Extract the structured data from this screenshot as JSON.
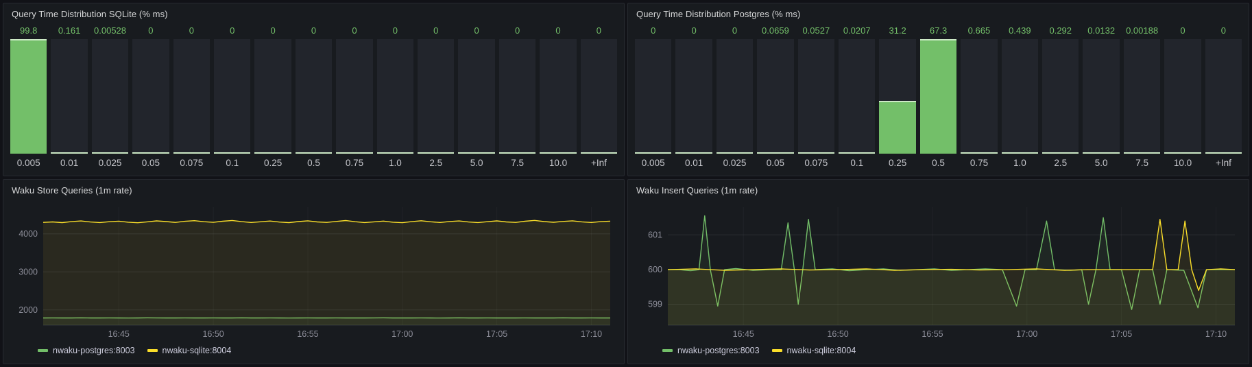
{
  "theme": {
    "bg": "#111217",
    "panel_bg": "#181b1f",
    "green": "#73bf69",
    "yellow": "#fade2a",
    "title_color": "#d8d9da",
    "axis_text": "rgba(204,204,220,0.65)",
    "bar_track": "#22252c"
  },
  "chart_data": [
    {
      "type": "bar",
      "panel": "top-left",
      "title": "Query Time Distribution SQLite (% ms)",
      "categories": [
        "0.005",
        "0.01",
        "0.025",
        "0.05",
        "0.075",
        "0.1",
        "0.25",
        "0.5",
        "0.75",
        "1.0",
        "2.5",
        "5.0",
        "7.5",
        "10.0",
        "+Inf"
      ],
      "values": [
        99.8,
        0.161,
        0.00528,
        0,
        0,
        0,
        0,
        0,
        0,
        0,
        0,
        0,
        0,
        0,
        0
      ],
      "value_labels": [
        "99.8",
        "0.161",
        "0.00528",
        "0",
        "0",
        "0",
        "0",
        "0",
        "0",
        "0",
        "0",
        "0",
        "0",
        "0",
        "0"
      ],
      "bar_color": "#73bf69",
      "scale": "relative-to-max"
    },
    {
      "type": "bar",
      "panel": "top-right",
      "title": "Query Time Distribution Postgres (% ms)",
      "categories": [
        "0.005",
        "0.01",
        "0.025",
        "0.05",
        "0.075",
        "0.1",
        "0.25",
        "0.5",
        "0.75",
        "1.0",
        "2.5",
        "5.0",
        "7.5",
        "10.0",
        "+Inf"
      ],
      "values": [
        0,
        0,
        0,
        0.0659,
        0.0527,
        0.0207,
        31.2,
        67.3,
        0.665,
        0.439,
        0.292,
        0.0132,
        0.00188,
        0,
        0
      ],
      "value_labels": [
        "0",
        "0",
        "0",
        "0.0659",
        "0.0527",
        "0.0207",
        "31.2",
        "67.3",
        "0.665",
        "0.439",
        "0.292",
        "0.0132",
        "0.00188",
        "0",
        "0"
      ],
      "bar_color": "#73bf69",
      "scale": "relative-to-max"
    },
    {
      "type": "line",
      "panel": "bottom-left",
      "title": "Waku Store Queries (1m rate)",
      "x_ticks": [
        "16:45",
        "16:50",
        "16:55",
        "17:00",
        "17:05",
        "17:10"
      ],
      "x_tick_pos": [
        0.1333,
        0.3,
        0.4667,
        0.6333,
        0.8,
        0.9667
      ],
      "y_ticks": [
        2000,
        3000,
        4000
      ],
      "ylim": [
        1600,
        4700
      ],
      "grid": true,
      "legend_position": "bottom",
      "series": [
        {
          "name": "nwaku-postgres:8003",
          "color": "#73bf69",
          "values": [
            1790,
            1791,
            1789,
            1790,
            1792,
            1790,
            1789,
            1791,
            1790,
            1788,
            1790,
            1792,
            1791,
            1789,
            1790,
            1791,
            1790,
            1789,
            1791,
            1790,
            1790,
            1792,
            1789,
            1790,
            1791,
            1790,
            1788,
            1790,
            1791,
            1790,
            1789,
            1791,
            1790,
            1790,
            1789,
            1791,
            1792,
            1790,
            1789,
            1790,
            1791,
            1790,
            1788,
            1790,
            1792,
            1790,
            1789,
            1791,
            1790,
            1789,
            1790,
            1791,
            1790,
            1789,
            1790,
            1792,
            1790,
            1789,
            1791,
            1790,
            1790
          ]
        },
        {
          "name": "nwaku-sqlite:8004",
          "color": "#fade2a",
          "values": [
            4300,
            4312,
            4295,
            4320,
            4338,
            4310,
            4296,
            4318,
            4332,
            4305,
            4290,
            4315,
            4340,
            4322,
            4300,
            4328,
            4345,
            4318,
            4302,
            4330,
            4350,
            4320,
            4298,
            4316,
            4336,
            4308,
            4294,
            4322,
            4342,
            4312,
            4300,
            4326,
            4348,
            4318,
            4296,
            4314,
            4334,
            4306,
            4292,
            4320,
            4344,
            4316,
            4298,
            4324,
            4338,
            4310,
            4296,
            4318,
            4340,
            4312,
            4300,
            4330,
            4352,
            4322,
            4304,
            4326,
            4342,
            4314,
            4298,
            4320,
            4332
          ]
        }
      ]
    },
    {
      "type": "line",
      "panel": "bottom-right",
      "title": "Waku Insert Queries (1m rate)",
      "x_ticks": [
        "16:45",
        "16:50",
        "16:55",
        "17:00",
        "17:05",
        "17:10"
      ],
      "x_tick_pos": [
        0.1333,
        0.3,
        0.4667,
        0.6333,
        0.8,
        0.9667
      ],
      "y_ticks": [
        599,
        600,
        601
      ],
      "ylim": [
        598.4,
        601.8
      ],
      "grid": true,
      "legend_position": "bottom",
      "series": [
        {
          "name": "nwaku-postgres:8003",
          "color": "#73bf69",
          "points": [
            [
              0,
              600
            ],
            [
              0.02,
              600
            ],
            [
              0.04,
              599.97
            ],
            [
              0.055,
              600
            ],
            [
              0.065,
              601.55
            ],
            [
              0.075,
              600
            ],
            [
              0.088,
              598.95
            ],
            [
              0.1,
              600
            ],
            [
              0.12,
              600.03
            ],
            [
              0.15,
              599.98
            ],
            [
              0.18,
              600
            ],
            [
              0.2,
              600
            ],
            [
              0.212,
              601.35
            ],
            [
              0.224,
              599.9
            ],
            [
              0.23,
              599.0
            ],
            [
              0.238,
              600
            ],
            [
              0.248,
              601.45
            ],
            [
              0.26,
              600
            ],
            [
              0.29,
              600.02
            ],
            [
              0.32,
              599.97
            ],
            [
              0.35,
              600
            ],
            [
              0.38,
              600.02
            ],
            [
              0.41,
              599.98
            ],
            [
              0.44,
              600
            ],
            [
              0.47,
              600.02
            ],
            [
              0.5,
              599.98
            ],
            [
              0.53,
              600
            ],
            [
              0.56,
              600.02
            ],
            [
              0.59,
              600
            ],
            [
              0.615,
              598.95
            ],
            [
              0.63,
              600
            ],
            [
              0.65,
              600
            ],
            [
              0.668,
              601.4
            ],
            [
              0.682,
              600
            ],
            [
              0.71,
              599.98
            ],
            [
              0.73,
              600
            ],
            [
              0.742,
              599.0
            ],
            [
              0.755,
              600
            ],
            [
              0.768,
              601.5
            ],
            [
              0.78,
              600
            ],
            [
              0.8,
              600
            ],
            [
              0.818,
              598.85
            ],
            [
              0.832,
              600
            ],
            [
              0.855,
              600
            ],
            [
              0.868,
              599.0
            ],
            [
              0.88,
              600
            ],
            [
              0.91,
              599.98
            ],
            [
              0.935,
              598.9
            ],
            [
              0.95,
              600
            ],
            [
              0.975,
              600
            ],
            [
              1,
              600
            ]
          ]
        },
        {
          "name": "nwaku-sqlite:8004",
          "color": "#fade2a",
          "points": [
            [
              0,
              600
            ],
            [
              0.05,
              600.02
            ],
            [
              0.1,
              599.98
            ],
            [
              0.15,
              600
            ],
            [
              0.2,
              600.02
            ],
            [
              0.25,
              599.99
            ],
            [
              0.3,
              600
            ],
            [
              0.35,
              600.02
            ],
            [
              0.4,
              599.98
            ],
            [
              0.45,
              600
            ],
            [
              0.5,
              600.01
            ],
            [
              0.55,
              599.99
            ],
            [
              0.6,
              600
            ],
            [
              0.65,
              600.02
            ],
            [
              0.7,
              599.98
            ],
            [
              0.74,
              600
            ],
            [
              0.78,
              600
            ],
            [
              0.82,
              600
            ],
            [
              0.855,
              600
            ],
            [
              0.868,
              601.45
            ],
            [
              0.88,
              600
            ],
            [
              0.9,
              600
            ],
            [
              0.912,
              601.4
            ],
            [
              0.924,
              600
            ],
            [
              0.936,
              599.4
            ],
            [
              0.95,
              600
            ],
            [
              0.975,
              600.02
            ],
            [
              1,
              600
            ]
          ]
        }
      ]
    }
  ]
}
